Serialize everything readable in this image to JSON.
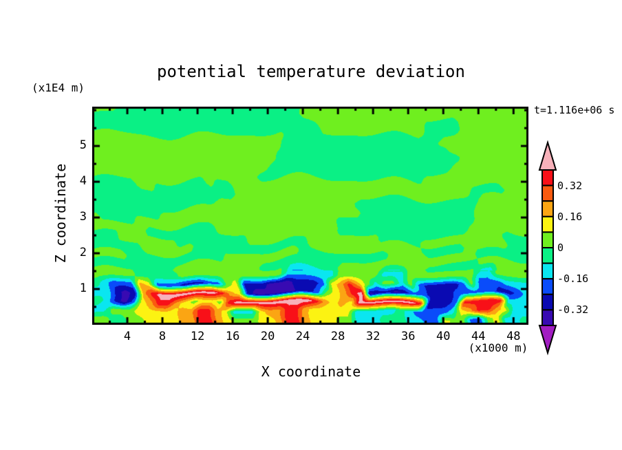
{
  "title": "potential temperature deviation",
  "time_label": "t=1.116e+06 s",
  "axes": {
    "x": {
      "label": "X coordinate",
      "unit": "(x1000 m)",
      "min": 0,
      "max": 49.7,
      "major_ticks": [
        4,
        8,
        12,
        16,
        20,
        24,
        28,
        32,
        36,
        40,
        44,
        48
      ],
      "minor_step": 2
    },
    "z": {
      "label": "Z coordinate",
      "unit": "(x1E4 m)",
      "min": 0,
      "max": 6.1,
      "major_ticks": [
        1,
        2,
        3,
        4,
        5
      ],
      "minor_step": 0.5
    }
  },
  "colorbar": {
    "labels": [
      {
        "text": "0.32",
        "boundary": 1
      },
      {
        "text": "0.16",
        "boundary": 3
      },
      {
        "text": "0",
        "boundary": 5
      },
      {
        "text": "-0.16",
        "boundary": 7
      },
      {
        "text": "-0.32",
        "boundary": 9
      }
    ],
    "segment_colors": [
      "#F81018",
      "#FA5A10",
      "#FBA513",
      "#FCF312",
      "#6FEF1F",
      "#0AF085",
      "#0AE6F0",
      "#0A4CFA",
      "#0A0AB2",
      "#380AB2"
    ],
    "arrow_top_color": "#F7B1BA",
    "arrow_bottom_color": "#A21EC2"
  },
  "chart_data": {
    "type": "heatmap",
    "title": "potential temperature deviation",
    "xlabel": "X coordinate (x1000 m)",
    "ylabel": "Z coordinate (x1E4 m)",
    "time": "t=1.116e+06 s",
    "x_range": [
      0,
      49.7
    ],
    "z_range": [
      0,
      6.1
    ],
    "contour_interval": 0.08,
    "levels": [
      -0.4,
      -0.32,
      -0.24,
      -0.16,
      -0.08,
      0,
      0.08,
      0.16,
      0.24,
      0.32,
      0.4
    ],
    "level_colors": [
      "#A21EC2",
      "#380AB2",
      "#0A0AB2",
      "#0A4CFA",
      "#0AE6F0",
      "#0AF085",
      "#6FEF1F",
      "#FCF312",
      "#FBA513",
      "#FA5A10",
      "#F81018",
      "#F7B1BA"
    ],
    "value_map": {
      "M": -0.45,
      "I": -0.36,
      "N": -0.28,
      "B": -0.2,
      "C": -0.12,
      "G": -0.04,
      "g": 0.04,
      "Y": 0.12,
      "O": 0.2,
      "r": 0.28,
      "R": 0.36,
      "P": 0.45
    },
    "grid_note": "24 rows top-to-bottom spanning z 6.1->0, 50 cols spanning x 0->49.7; chars map to theta' values via value_map",
    "grid_rows": [
      "gggGGGGGGGGGGGGGGGGGGGGGgggggggggggggggggggggggggg",
      "GGGGGGGGGGGGGGGGGGGGGGGGggggggggggggggGGGGggggggggg",
      "GGGGGGGGGGGGGGGGGGGGGGGGGGggggggggggggGGGGgggggggg",
      "ggggggggggggggggggggggGGGGGGGGGGGGGGGGGGgggggggggg",
      "ggggggggggggggggggggggGGGGGGGGGGGGGGGGGGGggggggggg",
      "gggggggggggggggggggggGGGGGGGGGGGGGGGGGGGGGgggggggg",
      "ggggggggggggggggggggGGGGGGGGGGGGGGGGGGGGGggggggggg",
      "gggggggggggggggggggGGGGGGGGGGGGGGGGGGGggggggggggggg",
      "GGGGGggGGGGGGgGGgggggggggggggggggggggggggggggggggg",
      "GGGGGGGGGGGGGGGGgggggggggggggggggggggggggggGGGGggg",
      "GGGGGGGGGGGGGGggggggggggggggggGGGGGGGGGGGGGGgggggggg",
      "GGGGGGGGgggggggggggggggggggggggGGGGGGGGGGGGGgggggg",
      "gGGGGgggggggggggggggggggggggGGGGGGGGGGGGGGGGgggggg",
      "ggggggGGGGGGGGggggggggggggggGGGGGGGGGGGGGGGggggggggg",
      "GGGgggggggGGGGGGGGgggggggggggggggGGGGGgggggggggGGG",
      "GGGGGGggggggGGGGGGGGGGGGGgggggggggggggGGGGGgggggGGGG",
      "ggggGGGGGGGGGGGgggggggggGGGGGGGGGGggggggggggGGGGGGG",
      "GGGGGGGGGggggggggggGGGGGGGGGggggggggggGGGGGGggggg",
      "gggggGGGGGggggggggggggCCCCCCgggggCCCggggggggCCgggg",
      "GCBBBOYBBBNNNBBgYNNNIIINNNBYOROgCggCgBNNNNBgBBBCCC",
      "CCNINORPPPPPPPROYNIIIIINNBgYORPINNINBBNNNBBBBBNNBC",
      "GCNIBYORROYgYYgRPPPPPPPPPROYOYPPPPPPPRNNNBRRRRRCCC",
      "CCgggYYYYYOORROYCCCYOORROYYYYYCCCCCGCBBBBCYORROYCC",
      "ggGGggYYYYOORROYgggYYORROYYYggCCCGGGCCBBYggBBgYCCG"
    ]
  }
}
